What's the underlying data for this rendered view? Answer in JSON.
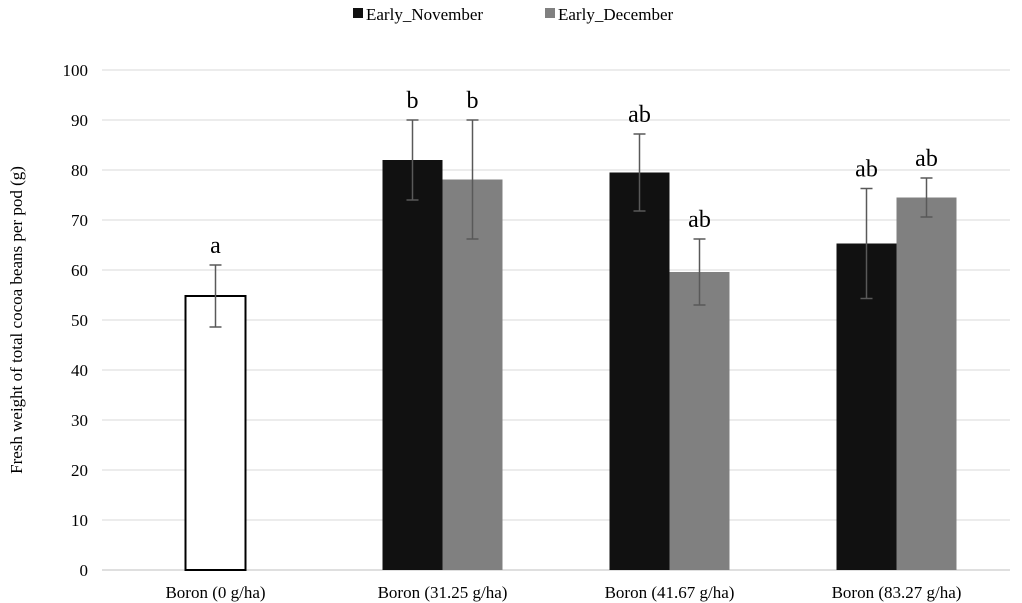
{
  "chart_data": {
    "type": "bar",
    "categories": [
      "Boron  (0 g/ha)",
      "Boron  (31.25 g/ha)",
      "Boron  (41.67 g/ha)",
      "Boron  (83.27 g/ha)"
    ],
    "ylabel": "Fresh weight of total cocoa beans per pod  (g)",
    "xlabel": "",
    "ylim": [
      0,
      100
    ],
    "yticks": [
      0,
      10,
      20,
      30,
      40,
      50,
      60,
      70,
      80,
      90,
      100
    ],
    "grid": true,
    "legend_position": "top-center",
    "control": {
      "category": "Boron  (0 g/ha)",
      "value": 54.8,
      "error": 6.2,
      "label": "a",
      "color": "#ffffff",
      "edge_color": "#000000"
    },
    "series": [
      {
        "name": "Early_November",
        "color": "#111111",
        "values": [
          null,
          82.0,
          79.5,
          65.3
        ],
        "errors": [
          null,
          8.0,
          7.7,
          11.0
        ],
        "labels": [
          "",
          "b",
          "ab",
          "ab"
        ]
      },
      {
        "name": "Early_December",
        "color": "#808080",
        "values": [
          null,
          78.1,
          59.6,
          74.5
        ],
        "errors": [
          null,
          11.9,
          6.6,
          3.9
        ],
        "labels": [
          "",
          "b",
          "ab",
          "ab"
        ]
      }
    ]
  }
}
